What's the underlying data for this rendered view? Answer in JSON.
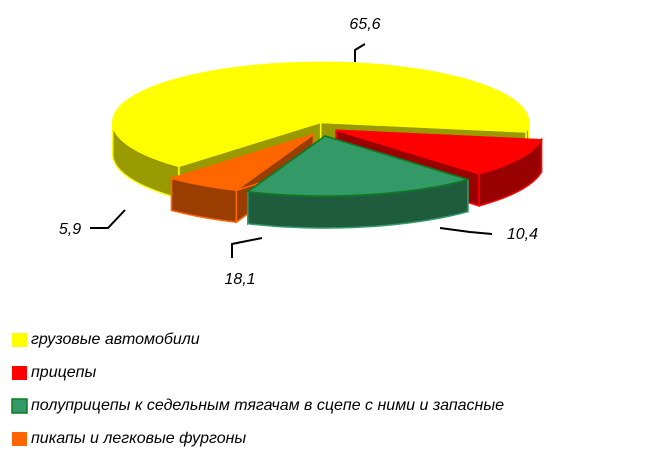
{
  "chart_data": {
    "type": "pie3d",
    "categories": [
      "грузовые автомобили",
      "прицепы",
      "полуприцепы к седельным тягачам в сцепе с ними и запасные",
      "пикапы и легковые фургоны"
    ],
    "values": [
      65.6,
      10.4,
      18.1,
      5.9
    ],
    "value_labels": [
      "65,6",
      "10,4",
      "18,1",
      "5,9"
    ],
    "colors": [
      "#ffff00",
      "#ff0000",
      "#339966",
      "#ff6600"
    ],
    "legend": "bottom"
  }
}
